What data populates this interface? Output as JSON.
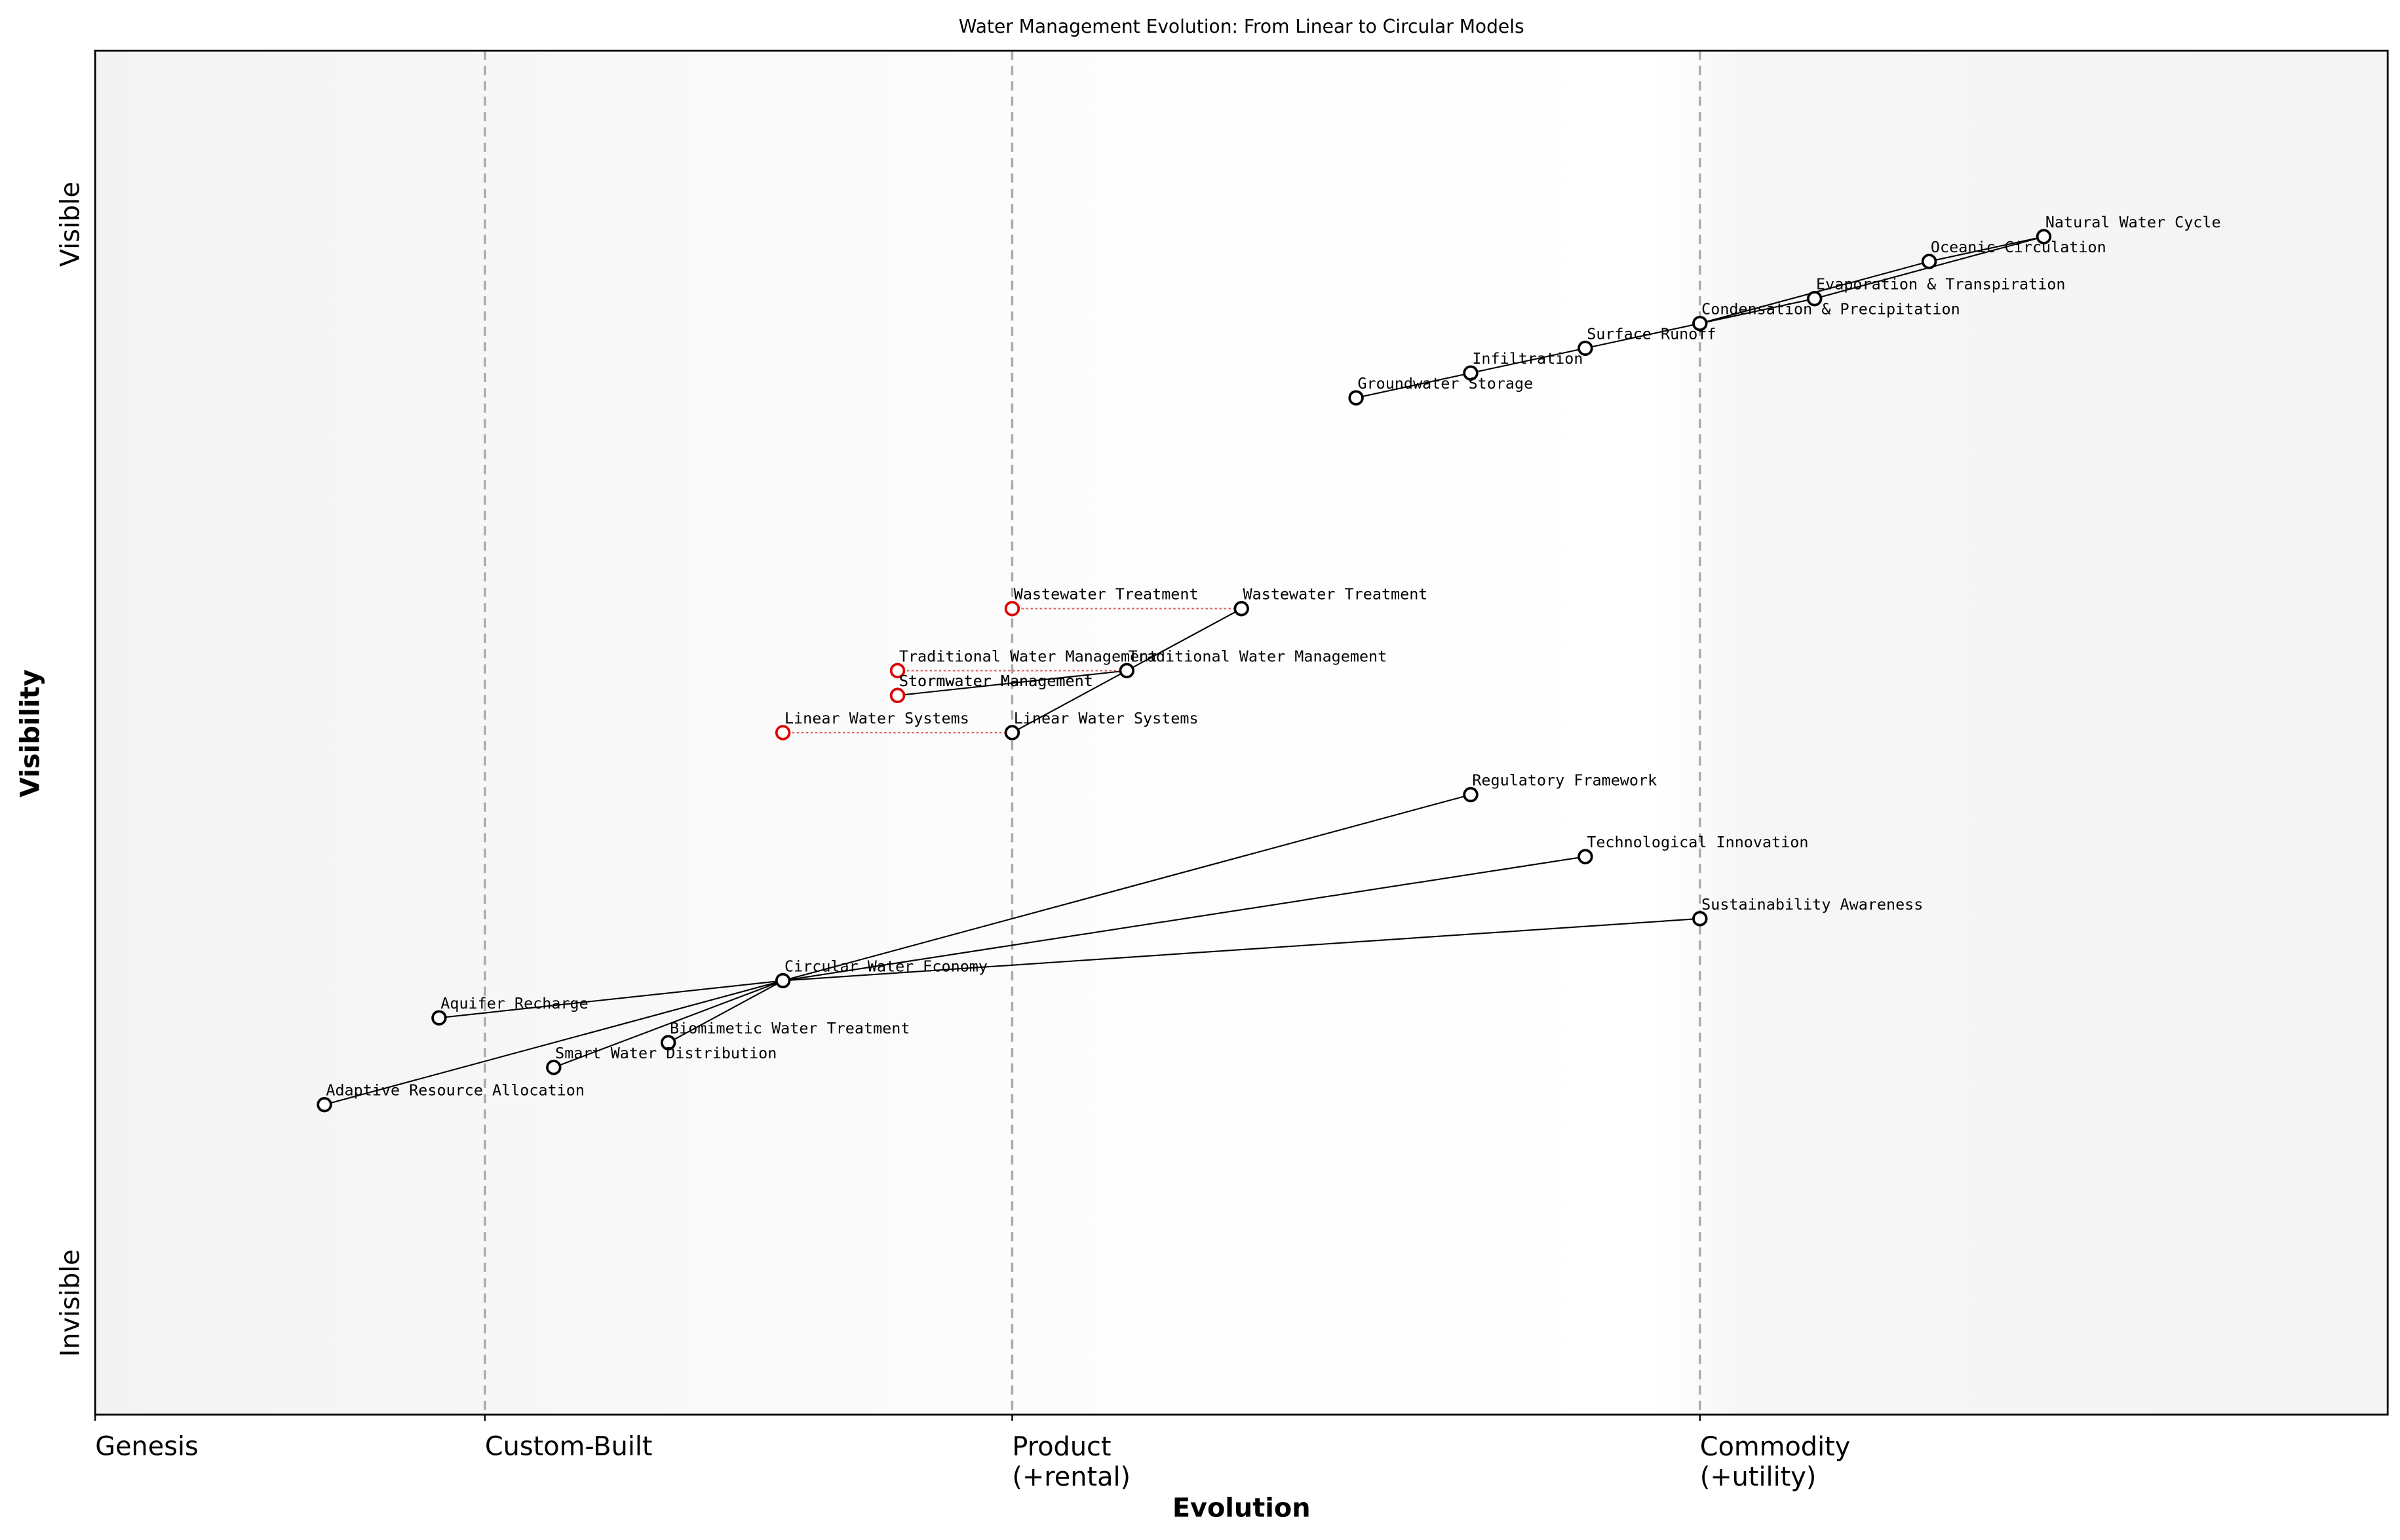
{
  "chart_data": {
    "type": "wardley",
    "title": "Water Management Evolution: From Linear to Circular Models",
    "xlabel": "Evolution",
    "ylabel": "Visibility",
    "xlim": [
      0,
      1
    ],
    "ylim": [
      -0.05,
      1.05
    ],
    "xticks": [
      {
        "value": 0,
        "label": "Genesis"
      },
      {
        "value": 0.17,
        "label": "Custom-Built"
      },
      {
        "value": 0.4,
        "label": "Product\n(+rental)"
      },
      {
        "value": 0.7,
        "label": "Commodity\n(+utility)"
      }
    ],
    "yticks": [
      {
        "value": 0.04,
        "label": "Invisible"
      },
      {
        "value": 0.91,
        "label": "Visible"
      }
    ],
    "components": [
      {
        "name": "Natural Water Cycle",
        "x": 0.85,
        "y": 0.9
      },
      {
        "name": "Oceanic Circulation",
        "x": 0.8,
        "y": 0.88
      },
      {
        "name": "Evaporation & Transpiration",
        "x": 0.75,
        "y": 0.85
      },
      {
        "name": "Condensation & Precipitation",
        "x": 0.7,
        "y": 0.83
      },
      {
        "name": "Surface Runoff",
        "x": 0.65,
        "y": 0.81
      },
      {
        "name": "Infiltration",
        "x": 0.6,
        "y": 0.79
      },
      {
        "name": "Groundwater Storage",
        "x": 0.55,
        "y": 0.77
      },
      {
        "name": "Wastewater Treatment",
        "x": 0.5,
        "y": 0.6
      },
      {
        "name": "Traditional Water Management",
        "x": 0.45,
        "y": 0.55
      },
      {
        "name": "Stormwater Management",
        "x": 0.35,
        "y": 0.53
      },
      {
        "name": "Linear Water Systems",
        "x": 0.4,
        "y": 0.5
      },
      {
        "name": "Regulatory Framework",
        "x": 0.6,
        "y": 0.45
      },
      {
        "name": "Technological Innovation",
        "x": 0.65,
        "y": 0.4
      },
      {
        "name": "Sustainability Awareness",
        "x": 0.7,
        "y": 0.35
      },
      {
        "name": "Circular Water Economy",
        "x": 0.3,
        "y": 0.3
      },
      {
        "name": "Aquifer Recharge",
        "x": 0.15,
        "y": 0.27
      },
      {
        "name": "Biomimetic Water Treatment",
        "x": 0.25,
        "y": 0.25
      },
      {
        "name": "Smart Water Distribution",
        "x": 0.2,
        "y": 0.23
      },
      {
        "name": "Adaptive Resource Allocation",
        "x": 0.1,
        "y": 0.2
      }
    ],
    "evolutions": [
      {
        "name": "Wastewater Treatment",
        "x": 0.4,
        "y": 0.6
      },
      {
        "name": "Traditional Water Management",
        "x": 0.35,
        "y": 0.55
      },
      {
        "name": "Stormwater Management",
        "x": 0.35,
        "y": 0.53
      },
      {
        "name": "Linear Water Systems",
        "x": 0.3,
        "y": 0.5
      }
    ],
    "links": [
      [
        "Natural Water Cycle",
        "Oceanic Circulation"
      ],
      [
        "Natural Water Cycle",
        "Evaporation & Transpiration"
      ],
      [
        "Oceanic Circulation",
        "Condensation & Precipitation"
      ],
      [
        "Evaporation & Transpiration",
        "Condensation & Precipitation"
      ],
      [
        "Condensation & Precipitation",
        "Surface Runoff"
      ],
      [
        "Surface Runoff",
        "Infiltration"
      ],
      [
        "Infiltration",
        "Groundwater Storage"
      ],
      [
        "Wastewater Treatment",
        "Linear Water Systems"
      ],
      [
        "Traditional Water Management",
        "Stormwater Management"
      ],
      [
        "Circular Water Economy",
        "Regulatory Framework"
      ],
      [
        "Circular Water Economy",
        "Technological Innovation"
      ],
      [
        "Circular Water Economy",
        "Sustainability Awareness"
      ],
      [
        "Circular Water Economy",
        "Aquifer Recharge"
      ],
      [
        "Circular Water Economy",
        "Biomimetic Water Treatment"
      ],
      [
        "Circular Water Economy",
        "Smart Water Distribution"
      ],
      [
        "Circular Water Economy",
        "Adaptive Resource Allocation"
      ]
    ]
  }
}
